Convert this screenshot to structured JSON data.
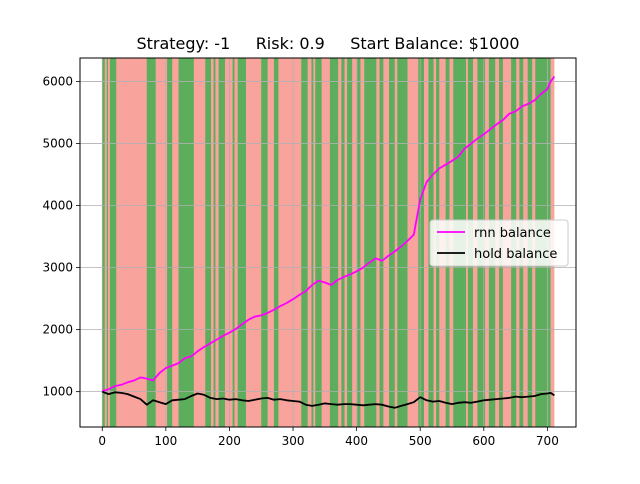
{
  "chart_data": {
    "type": "line",
    "title": "Strategy: -1     Risk: 0.9     Start Balance: $1000",
    "xlabel": "",
    "ylabel": "",
    "xlim": [
      -35,
      745
    ],
    "ylim": [
      430,
      6380
    ],
    "x_ticks": [
      0,
      100,
      200,
      300,
      400,
      500,
      600,
      700
    ],
    "y_ticks": [
      1000,
      2000,
      3000,
      4000,
      5000,
      6000
    ],
    "grid": true,
    "legend_position": "center right",
    "colors": {
      "rnn": "#ff00ff",
      "hold": "#000000",
      "buy_region": "#5cae5c",
      "sell_region": "#f9a39d"
    },
    "background_regions": {
      "description_key": "sign",
      "buy_intervals": [
        [
          0,
          4
        ],
        [
          7,
          9
        ],
        [
          12,
          22
        ],
        [
          70,
          84
        ],
        [
          102,
          110
        ],
        [
          120,
          144
        ],
        [
          162,
          171
        ],
        [
          175,
          178
        ],
        [
          183,
          193
        ],
        [
          205,
          208
        ],
        [
          213,
          226
        ],
        [
          250,
          260
        ],
        [
          270,
          277
        ],
        [
          313,
          323
        ],
        [
          329,
          332
        ],
        [
          335,
          345
        ],
        [
          358,
          371
        ],
        [
          376,
          381
        ],
        [
          385,
          393
        ],
        [
          401,
          406
        ],
        [
          412,
          431
        ],
        [
          436,
          442
        ],
        [
          451,
          460
        ],
        [
          464,
          480
        ],
        [
          497,
          506
        ],
        [
          513,
          521
        ],
        [
          525,
          530
        ],
        [
          540,
          546
        ],
        [
          552,
          572
        ],
        [
          575,
          583
        ],
        [
          590,
          602
        ],
        [
          608,
          618
        ],
        [
          624,
          630
        ],
        [
          643,
          651
        ],
        [
          656,
          662
        ],
        [
          669,
          676
        ],
        [
          681,
          705
        ]
      ],
      "x_range": [
        0,
        711
      ]
    },
    "series": [
      {
        "name": "rnn balance",
        "x": [
          0,
          10,
          20,
          30,
          40,
          50,
          60,
          70,
          80,
          90,
          100,
          110,
          120,
          130,
          140,
          150,
          160,
          170,
          180,
          190,
          200,
          210,
          220,
          230,
          240,
          250,
          260,
          270,
          280,
          290,
          300,
          310,
          320,
          330,
          340,
          350,
          360,
          370,
          380,
          390,
          400,
          410,
          420,
          430,
          440,
          450,
          460,
          470,
          480,
          490,
          500,
          510,
          520,
          530,
          540,
          550,
          560,
          570,
          580,
          590,
          600,
          610,
          620,
          630,
          640,
          650,
          660,
          670,
          680,
          690,
          700,
          705,
          711
        ],
        "y": [
          1010,
          1040,
          1090,
          1110,
          1150,
          1180,
          1230,
          1210,
          1180,
          1300,
          1380,
          1420,
          1460,
          1540,
          1570,
          1650,
          1720,
          1780,
          1840,
          1900,
          1950,
          2010,
          2090,
          2160,
          2210,
          2230,
          2270,
          2320,
          2380,
          2430,
          2490,
          2560,
          2620,
          2720,
          2790,
          2760,
          2720,
          2800,
          2850,
          2890,
          2940,
          3000,
          3080,
          3150,
          3110,
          3190,
          3260,
          3340,
          3430,
          3530,
          4100,
          4380,
          4500,
          4600,
          4660,
          4720,
          4790,
          4920,
          5000,
          5080,
          5150,
          5230,
          5310,
          5380,
          5480,
          5520,
          5600,
          5640,
          5700,
          5800,
          5880,
          6000,
          6080
        ]
      },
      {
        "name": "hold balance",
        "x": [
          0,
          10,
          20,
          30,
          40,
          50,
          60,
          70,
          80,
          90,
          100,
          110,
          120,
          130,
          140,
          150,
          160,
          170,
          180,
          190,
          200,
          210,
          220,
          230,
          240,
          250,
          260,
          270,
          280,
          290,
          300,
          310,
          320,
          330,
          340,
          350,
          360,
          370,
          380,
          390,
          400,
          410,
          420,
          430,
          440,
          450,
          460,
          470,
          480,
          490,
          500,
          510,
          520,
          530,
          540,
          550,
          560,
          570,
          580,
          590,
          600,
          610,
          620,
          630,
          640,
          650,
          660,
          670,
          680,
          690,
          700,
          705,
          711
        ],
        "y": [
          1000,
          960,
          990,
          980,
          960,
          920,
          880,
          790,
          860,
          830,
          800,
          860,
          870,
          880,
          930,
          970,
          950,
          900,
          880,
          890,
          870,
          880,
          860,
          850,
          870,
          890,
          900,
          870,
          880,
          860,
          850,
          840,
          790,
          770,
          790,
          810,
          800,
          790,
          800,
          800,
          790,
          780,
          790,
          800,
          790,
          760,
          740,
          770,
          800,
          830,
          910,
          860,
          840,
          850,
          820,
          800,
          820,
          830,
          820,
          840,
          860,
          870,
          880,
          890,
          900,
          920,
          910,
          920,
          930,
          960,
          970,
          980,
          940
        ]
      }
    ]
  }
}
